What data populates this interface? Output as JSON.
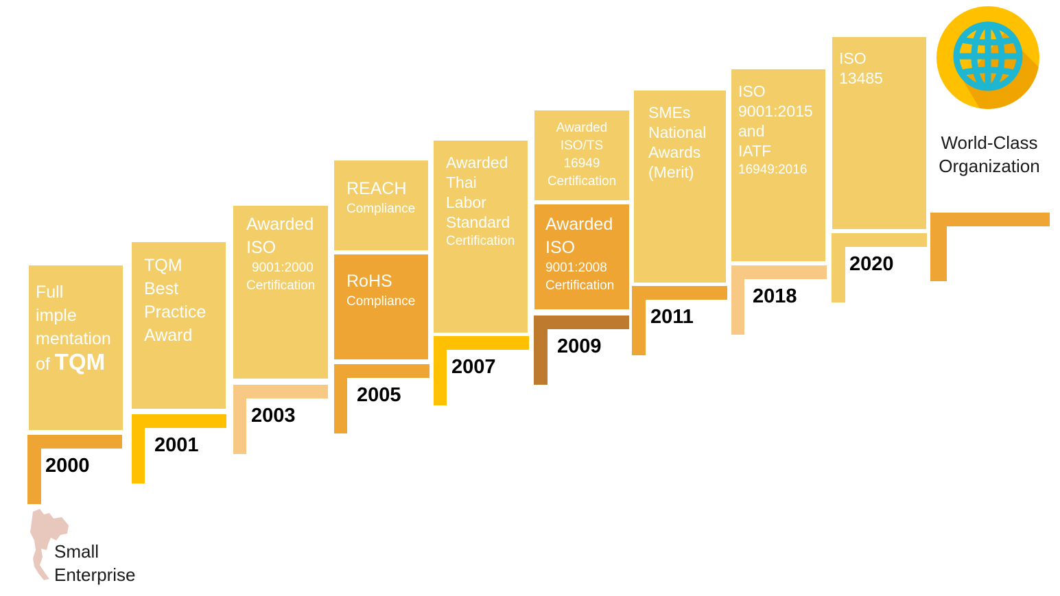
{
  "colors": {
    "light_yellow": "#F2CD68",
    "orange": "#EEA533",
    "gold": "#FFC000",
    "peach": "#F8C985",
    "brown": "#BE7A2F",
    "globe_circle": "#FFC000",
    "globe_blue": "#1FB6D1"
  },
  "start": {
    "lines": [
      "Small",
      "Enterprise"
    ],
    "icon": "thailand-map-icon"
  },
  "end": {
    "lines": [
      "World-Class",
      "Organization"
    ],
    "icon": "globe-icon"
  },
  "steps": [
    {
      "year": "2000",
      "boxes": [
        {
          "lines": [
            "Full",
            "imple",
            "mentation",
            "of TQM"
          ]
        }
      ]
    },
    {
      "year": "2001",
      "boxes": [
        {
          "lines": [
            "TQM",
            "Best",
            "Practice",
            "Award"
          ]
        }
      ]
    },
    {
      "year": "2003",
      "boxes": [
        {
          "lines": [
            "Awarded",
            "ISO",
            "9001:2000",
            "Certification"
          ]
        }
      ]
    },
    {
      "year": "2005",
      "boxes": [
        {
          "lines": [
            "REACH",
            "Compliance"
          ]
        },
        {
          "lines": [
            "RoHS",
            "Compliance"
          ]
        }
      ]
    },
    {
      "year": "2007",
      "boxes": [
        {
          "lines": [
            "Awarded",
            "Thai",
            "Labor",
            "Standard",
            "Certification"
          ]
        }
      ]
    },
    {
      "year": "2009",
      "boxes": [
        {
          "lines": [
            "Awarded",
            "ISO/TS",
            "16949",
            "Certification"
          ]
        },
        {
          "lines": [
            "Awarded",
            "ISO",
            "9001:2008",
            "Certification"
          ]
        }
      ]
    },
    {
      "year": "2011",
      "boxes": [
        {
          "lines": [
            "SMEs",
            "National",
            "Awards",
            "(Merit)"
          ]
        }
      ]
    },
    {
      "year": "2018",
      "boxes": [
        {
          "lines": [
            "ISO",
            "9001:2015",
            "and",
            "IATF",
            "16949:2016"
          ]
        }
      ]
    },
    {
      "year": "2020",
      "boxes": [
        {
          "lines": [
            "ISO",
            "13485"
          ]
        }
      ]
    }
  ]
}
